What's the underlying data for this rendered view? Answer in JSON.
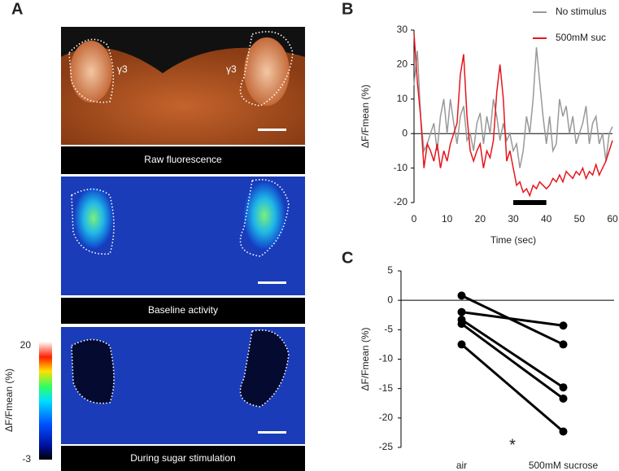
{
  "panel_a": {
    "label": "A",
    "captions": [
      "Raw fluorescence",
      "Baseline activity",
      "During sugar stimulation"
    ],
    "region_labels": [
      "γ3",
      "γ3"
    ],
    "colorbar": {
      "label": "ΔF/Fmean (%)",
      "lim": [
        -3,
        20
      ],
      "ticks": [
        20,
        -3
      ]
    }
  },
  "chart_data": [
    {
      "type": "line",
      "panel_label": "B",
      "ylabel": "ΔF/Fmean (%)",
      "xlabel": "Time (sec)",
      "x": [
        0,
        1,
        2,
        3,
        4,
        5,
        6,
        7,
        8,
        9,
        10,
        11,
        12,
        13,
        14,
        15,
        16,
        17,
        18,
        19,
        20,
        21,
        22,
        23,
        24,
        25,
        26,
        27,
        28,
        29,
        30,
        31,
        32,
        33,
        34,
        35,
        36,
        37,
        38,
        39,
        40,
        41,
        42,
        43,
        44,
        45,
        46,
        47,
        48,
        49,
        50,
        51,
        52,
        53,
        54,
        55,
        56,
        57,
        58,
        59,
        60
      ],
      "series": [
        {
          "name": "No stimulus",
          "color": "#999999",
          "values": [
            14,
            24,
            5,
            -5,
            -3,
            0,
            3,
            -5,
            5,
            10,
            0,
            10,
            3,
            -3,
            5,
            8,
            -2,
            0,
            -5,
            3,
            6,
            -3,
            5,
            0,
            10,
            5,
            -2,
            3,
            -2,
            0,
            -5,
            -3,
            -10,
            -5,
            5,
            0,
            10,
            25,
            15,
            5,
            -3,
            5,
            -5,
            -3,
            10,
            5,
            8,
            0,
            5,
            -3,
            0,
            3,
            8,
            -3,
            3,
            5,
            -3,
            0,
            -8,
            0,
            2
          ]
        },
        {
          "name": "500mM suc",
          "color": "#e8151b",
          "values": [
            29,
            15,
            5,
            -10,
            -3,
            -5,
            -8,
            -3,
            -10,
            -5,
            -8,
            -3,
            0,
            3,
            17,
            23,
            5,
            -5,
            -8,
            -5,
            -3,
            -10,
            -5,
            -7,
            -2,
            12,
            20,
            10,
            -8,
            -5,
            -10,
            -15,
            -14,
            -17,
            -16,
            -18,
            -15,
            -16,
            -14,
            -15,
            -16,
            -15,
            -13,
            -14,
            -12,
            -14,
            -11,
            -12,
            -13,
            -11,
            -12,
            -10,
            -13,
            -11,
            -12,
            -9,
            -12,
            -10,
            -8,
            -5,
            -2
          ]
        }
      ],
      "xlim": [
        0,
        60
      ],
      "ylim": [
        -20,
        30
      ],
      "xticks": [
        0,
        10,
        20,
        30,
        40,
        50,
        60
      ],
      "yticks": [
        -20,
        -10,
        0,
        10,
        20,
        30
      ],
      "zero_line": true,
      "legend": "top-right",
      "highlight_interval": [
        30,
        40
      ]
    },
    {
      "type": "paired",
      "panel_label": "C",
      "ylabel": "ΔF/Fmean (%)",
      "categories": [
        "air",
        "500mM sucrose"
      ],
      "color": "#000000",
      "series": [
        {
          "values": [
            0.8,
            -7.5
          ]
        },
        {
          "values": [
            -2,
            -4.3
          ]
        },
        {
          "values": [
            -3.3,
            -14.8
          ]
        },
        {
          "values": [
            -4,
            -16.7
          ]
        },
        {
          "values": [
            -7.5,
            -22.3
          ]
        }
      ],
      "ylim": [
        -25,
        5
      ],
      "yticks": [
        -25,
        -20,
        -15,
        -10,
        -5,
        0,
        5
      ],
      "zero_line": true,
      "annotation": "*"
    }
  ]
}
